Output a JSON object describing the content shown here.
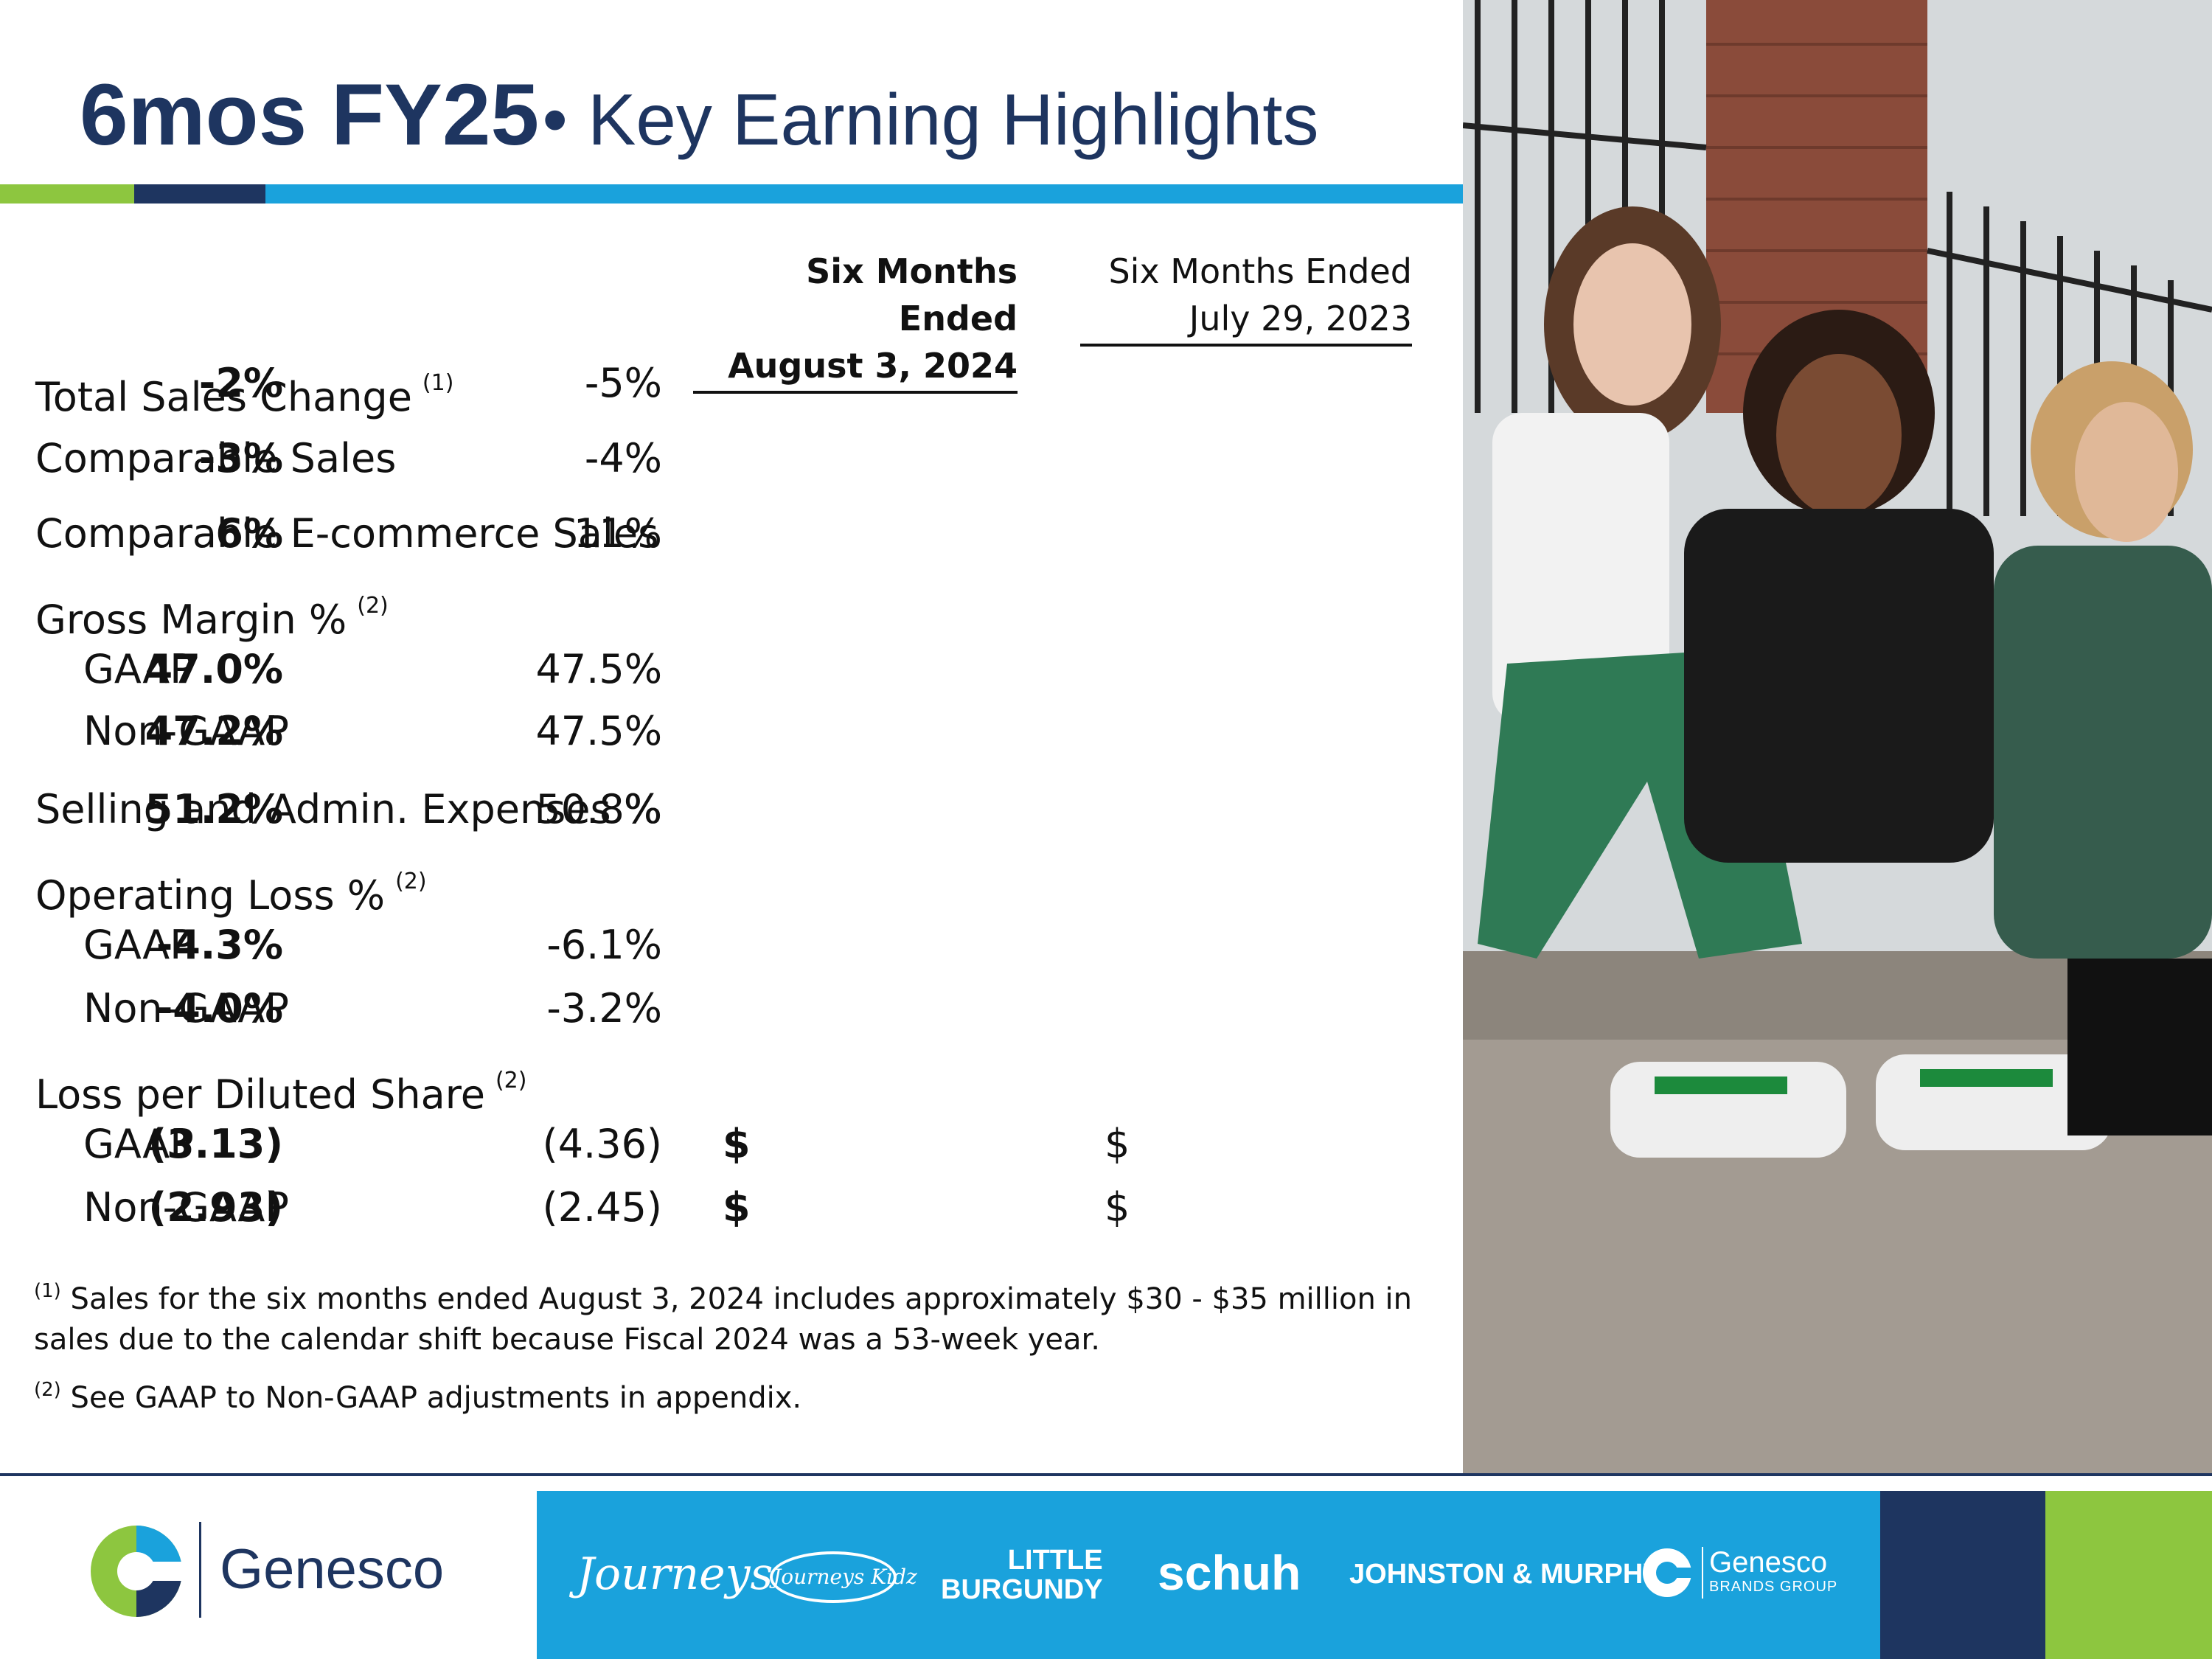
{
  "title": {
    "bold": "6mos FY25",
    "rest": "• Key Earning Highlights"
  },
  "columns": {
    "current": {
      "line1": "Six Months Ended",
      "line2": "August 3, 2024"
    },
    "prior": {
      "line1": "Six Months Ended",
      "line2": "July 29, 2023"
    }
  },
  "rows": {
    "total_sales_change": {
      "label": "Total Sales Change",
      "note": "(1)",
      "current": "-2%",
      "prior": "-5%"
    },
    "comparable_sales": {
      "label": "Comparable Sales",
      "current": "-3%",
      "prior": "-4%"
    },
    "comparable_ecommerce": {
      "label": "Comparable E-commerce Sales",
      "current": "6%",
      "prior": "11%"
    },
    "gross_margin": {
      "label": "Gross Margin %",
      "note": "(2)"
    },
    "gm_gaap": {
      "label": "GAAP",
      "current": "47.0%",
      "prior": "47.5%"
    },
    "gm_nongaap": {
      "label": "Non-GAAP",
      "current": "47.2%",
      "prior": "47.5%"
    },
    "sga": {
      "label": "Selling and Admin. Expenses %",
      "current": "51.2%",
      "prior": "50.8%"
    },
    "operating_loss": {
      "label": "Operating Loss %",
      "note": "(2)"
    },
    "ol_gaap": {
      "label": "GAAP",
      "current": "-4.3%",
      "prior": "-6.1%"
    },
    "ol_nongaap": {
      "label": "Non-GAAP",
      "current": "-4.0%",
      "prior": "-3.2%"
    },
    "lps": {
      "label": "Loss per Diluted Share",
      "note": "(2)"
    },
    "lps_gaap": {
      "label": "GAAP",
      "currency": "$",
      "current": "(3.13)",
      "prior_currency": "$",
      "prior": "(4.36)"
    },
    "lps_nongaap": {
      "label": "Non-GAAP",
      "currency": "$",
      "current": "(2.93)",
      "prior_currency": "$",
      "prior": "(2.45)"
    }
  },
  "footnotes": {
    "note1_mark": "(1)",
    "note1_line1": " Sales for the six months ended August 3, 2024 includes approximately $30 - $35 million in",
    "note1_line2": "sales due to the calendar shift because Fiscal 2024 was a 53-week year.",
    "note2_mark": "(2)",
    "note2_text": " See GAAP to Non-GAAP adjustments in appendix."
  },
  "footer": {
    "company": "Genesco",
    "brands": {
      "journeys": "Journeys",
      "journeys_kidz": "Journeys Kidz",
      "little_burgundy_1": "LITTLE",
      "little_burgundy_2": "BURGUNDY",
      "schuh": "schuh",
      "johnston_murphy": "JOHNSTON & MURPHY.",
      "gbg_1": "Genesco",
      "gbg_2": "BRANDS GROUP"
    }
  },
  "colors": {
    "navy": "#1e3560",
    "blue": "#1aa2dc",
    "green": "#8dc63f"
  }
}
